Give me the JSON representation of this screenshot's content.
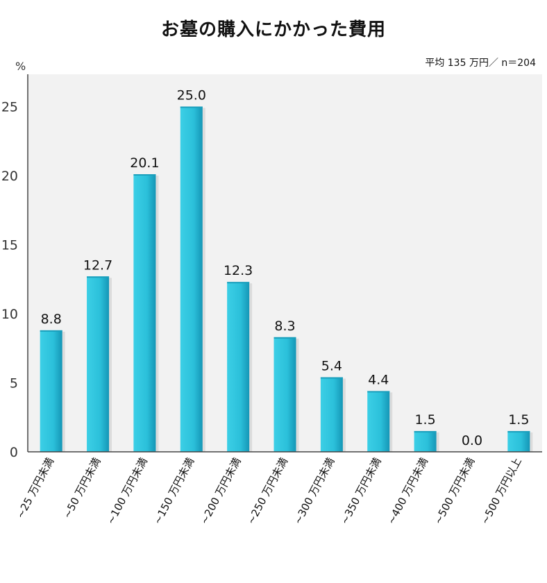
{
  "chart_data": {
    "type": "bar",
    "title": "お墓の購入にかかった費用",
    "note": "平均 135 万円／ n＝204",
    "ylabel": "%",
    "ylim": [
      0,
      27
    ],
    "yticks": [
      "0",
      "5",
      "10",
      "15",
      "20",
      "25"
    ],
    "grid": false,
    "categories": [
      "~25 万円未満",
      "~50 万円未満",
      "~100 万円未満",
      "~150 万円未満",
      "~200 万円未満",
      "~250 万円未満",
      "~300 万円未満",
      "~350 万円未満",
      "~400 万円未満",
      "~500 万円未満",
      "~500 万円以上"
    ],
    "values": [
      8.8,
      12.7,
      20.1,
      25.0,
      12.3,
      8.3,
      5.4,
      4.4,
      1.5,
      0.0,
      1.5
    ],
    "value_labels": [
      "8.8",
      "12.7",
      "20.1",
      "25.0",
      "12.3",
      "8.3",
      "5.4",
      "4.4",
      "1.5",
      "0.0",
      "1.5"
    ],
    "colors": {
      "bar": "#2ec4dc",
      "bar_dark": "#1a9fbc",
      "plot_bg": "#f2f2f2",
      "shadow": "#dcdcdc"
    }
  }
}
